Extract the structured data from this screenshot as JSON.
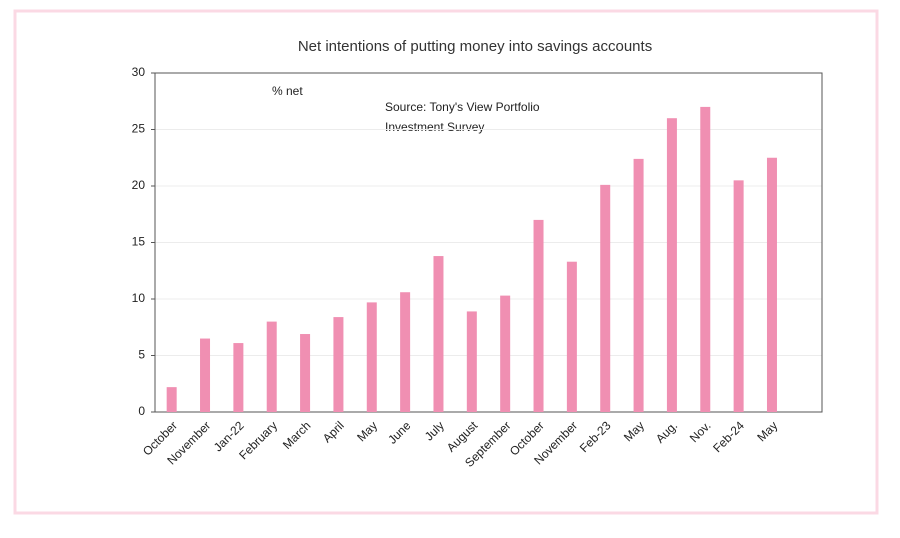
{
  "chart_data": {
    "type": "bar",
    "title": "Net intentions of putting money into savings accounts",
    "annotations": [
      "% net",
      "Source: Tony's View Portfolio",
      "Investment Survey"
    ],
    "categories": [
      "October",
      "November",
      "Jan-22",
      "February",
      "March",
      "April",
      "May",
      "June",
      "July",
      "August",
      "September",
      "October",
      "November",
      "Feb-23",
      "May",
      "Aug.",
      "Nov.",
      "Feb-24",
      "May"
    ],
    "values": [
      2.2,
      6.5,
      6.1,
      8.0,
      6.9,
      8.4,
      9.7,
      10.6,
      13.8,
      8.9,
      10.3,
      17.0,
      13.3,
      20.1,
      22.4,
      26.0,
      27.0,
      20.5,
      22.5
    ],
    "color": "#f08fb2",
    "ylim": [
      0,
      30
    ],
    "yticks": [
      0,
      5,
      10,
      15,
      20,
      25,
      30
    ],
    "grid": true
  }
}
